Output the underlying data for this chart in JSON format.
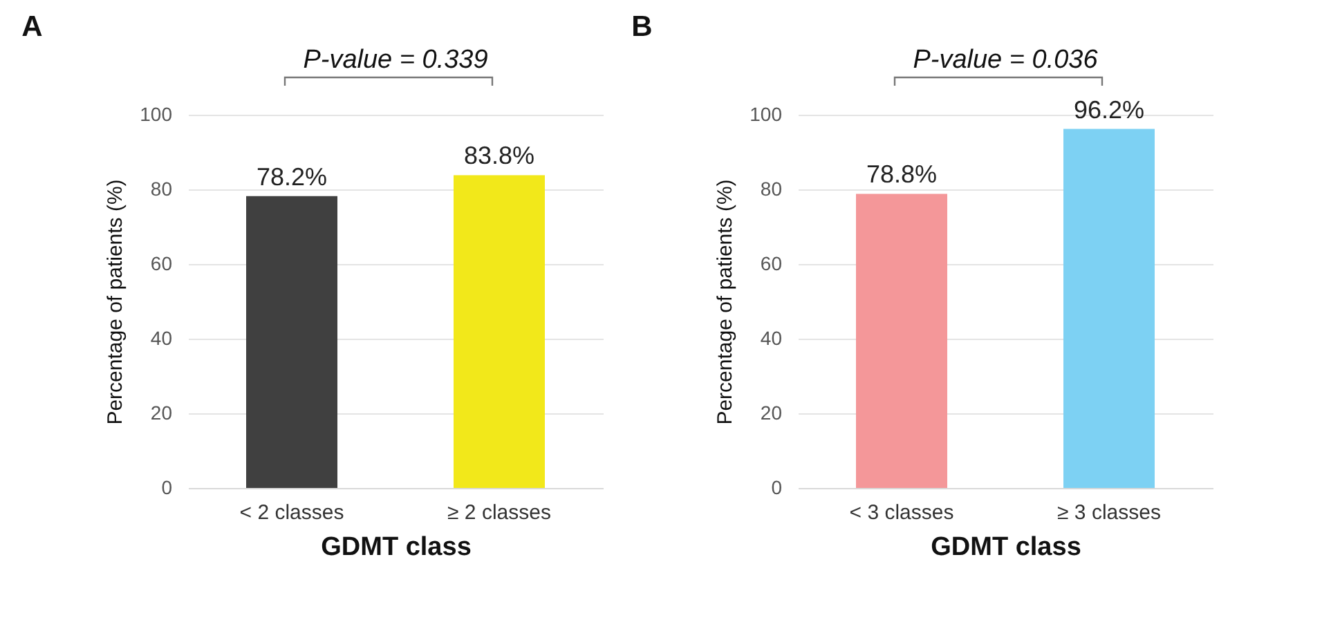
{
  "chart_data": [
    {
      "type": "bar",
      "title": "A",
      "categories": [
        "< 2  classes",
        "≥ 2 classes"
      ],
      "values": [
        78.2,
        83.8
      ],
      "colors": [
        "#404040",
        "#f2e81a"
      ],
      "value_labels": [
        "78.2%",
        "83.8%"
      ],
      "xlabel": "GDMT class",
      "ylabel": "Percentage of patients (%)",
      "ylim": [
        0,
        100
      ],
      "yticks": [
        0,
        20,
        40,
        60,
        80,
        100
      ],
      "grid": "y",
      "annotations": [
        "P-value = 0.339"
      ]
    },
    {
      "type": "bar",
      "title": "B",
      "categories": [
        "< 3  classes",
        "≥ 3 classes"
      ],
      "values": [
        78.8,
        96.2
      ],
      "colors": [
        "#f49799",
        "#7dd1f3"
      ],
      "value_labels": [
        "78.8%",
        "96.2%"
      ],
      "xlabel": "GDMT class",
      "ylabel": "Percentage of patients (%)",
      "ylim": [
        0,
        100
      ],
      "yticks": [
        0,
        20,
        40,
        60,
        80,
        100
      ],
      "grid": "y",
      "annotations": [
        "P-value = 0.036"
      ]
    }
  ]
}
